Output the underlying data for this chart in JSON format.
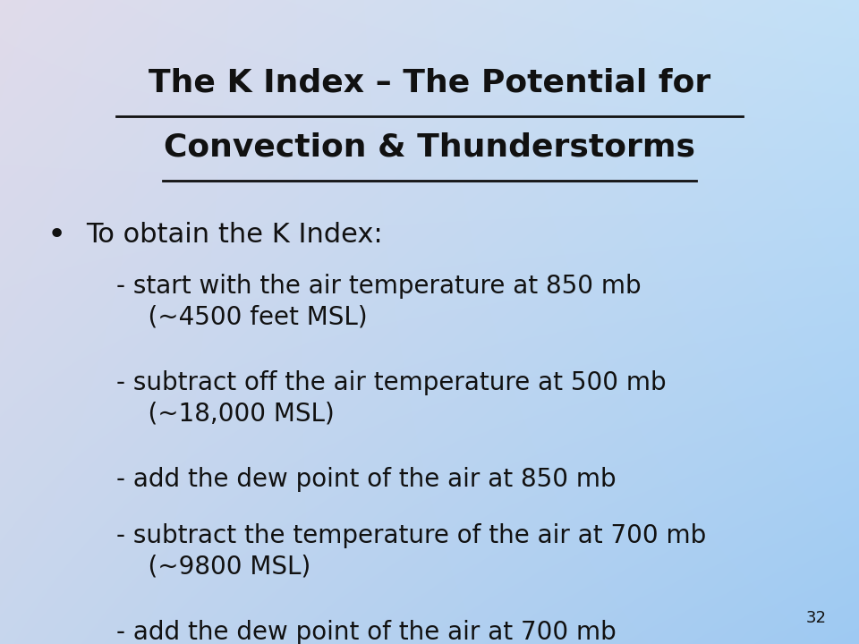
{
  "title_line1": "The K Index – The Potential for",
  "title_line2": "Convection & Thunderstorms",
  "slide_number": "32",
  "bullet_text": "To obtain the K Index:",
  "sub_items": [
    "- start with the air temperature at 850 mb\n    (~4500 feet MSL)",
    "- subtract off the air temperature at 500 mb\n    (~18,000 MSL)",
    "- add the dew point of the air at 850 mb",
    "- subtract the temperature of the air at 700 mb\n    (~9800 MSL)",
    "- add the dew point of the air at 700 mb"
  ],
  "bg_topleft": [
    0.88,
    0.86,
    0.92
  ],
  "bg_topright": [
    0.76,
    0.88,
    0.97
  ],
  "bg_bottomleft": [
    0.78,
    0.84,
    0.93
  ],
  "bg_bottomright": [
    0.62,
    0.79,
    0.95
  ],
  "text_color": "#111111",
  "title_fontsize": 26,
  "bullet_fontsize": 22,
  "sub_fontsize": 20,
  "slide_num_fontsize": 13,
  "underline_color": "#111111",
  "underline_lw": 2.0
}
